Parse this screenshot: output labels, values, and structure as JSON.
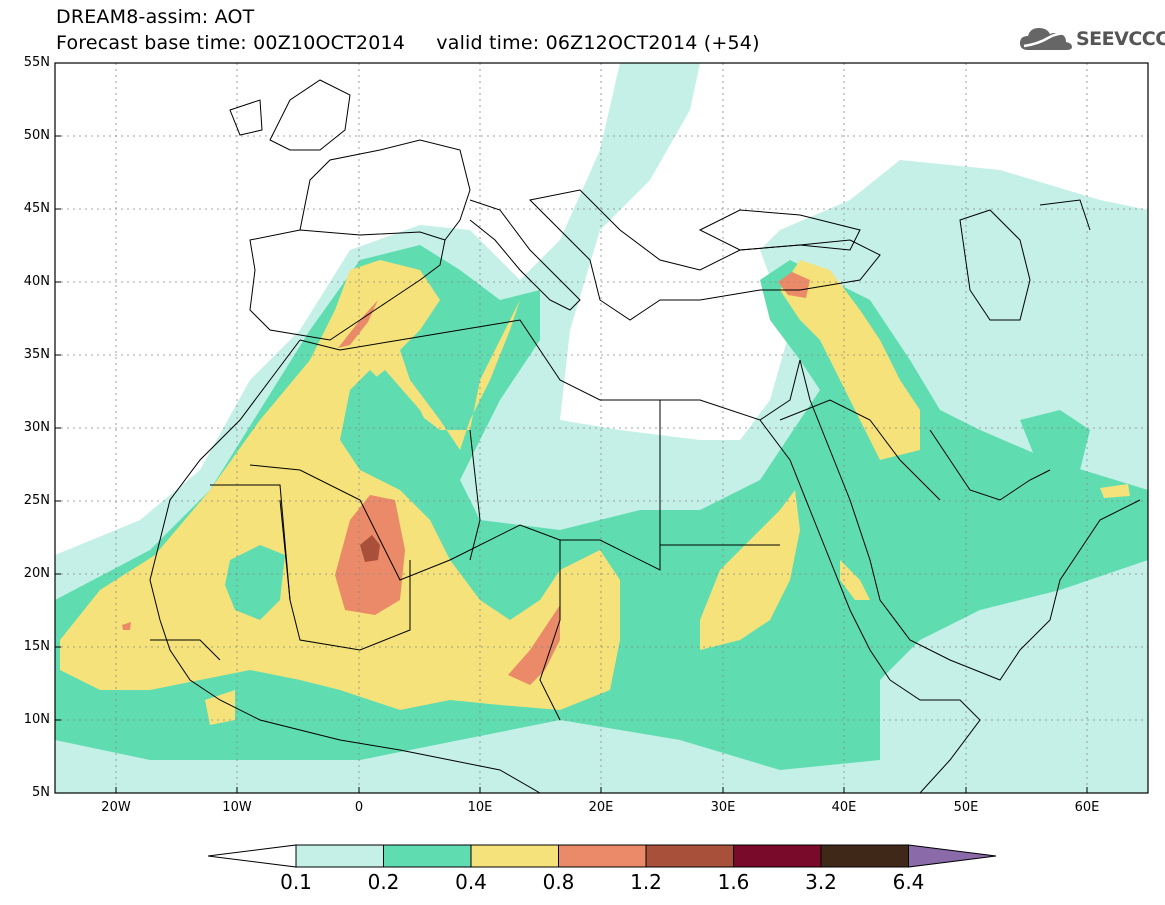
{
  "header": {
    "title_line1": "DREAM8-assim: AOT",
    "title_line2": "Forecast base time: 00Z10OCT2014     valid time: 06Z12OCT2014 (+54)",
    "logo_text": "SEEVCCC"
  },
  "map": {
    "lon_range": [
      -25,
      65
    ],
    "lat_range": [
      5,
      55
    ],
    "lat_labels": [
      "55N",
      "50N",
      "45N",
      "40N",
      "35N",
      "30N",
      "25N",
      "20N",
      "15N",
      "10N",
      "5N"
    ],
    "lon_labels": [
      "20W",
      "10W",
      "0",
      "10E",
      "20E",
      "30E",
      "40E",
      "50E",
      "60E"
    ],
    "gridlines": true
  },
  "colorbar": {
    "levels": [
      "0.1",
      "0.2",
      "0.4",
      "0.8",
      "1.2",
      "1.6",
      "3.2",
      "6.4"
    ],
    "colors": [
      "#ffffff",
      "#c4f0e8",
      "#5fdcb0",
      "#f5e27a",
      "#ea8a68",
      "#a8503a",
      "#7a0a2a",
      "#402818",
      "#8a6aa8"
    ]
  },
  "colors": {
    "aot_0.1_0.2": "#c4f0e8",
    "aot_0.2_0.4": "#5fdcb0",
    "aot_0.4_0.8": "#f5e27a",
    "aot_0.8_1.2": "#ea8a68",
    "aot_1.2_1.6": "#a8503a"
  }
}
